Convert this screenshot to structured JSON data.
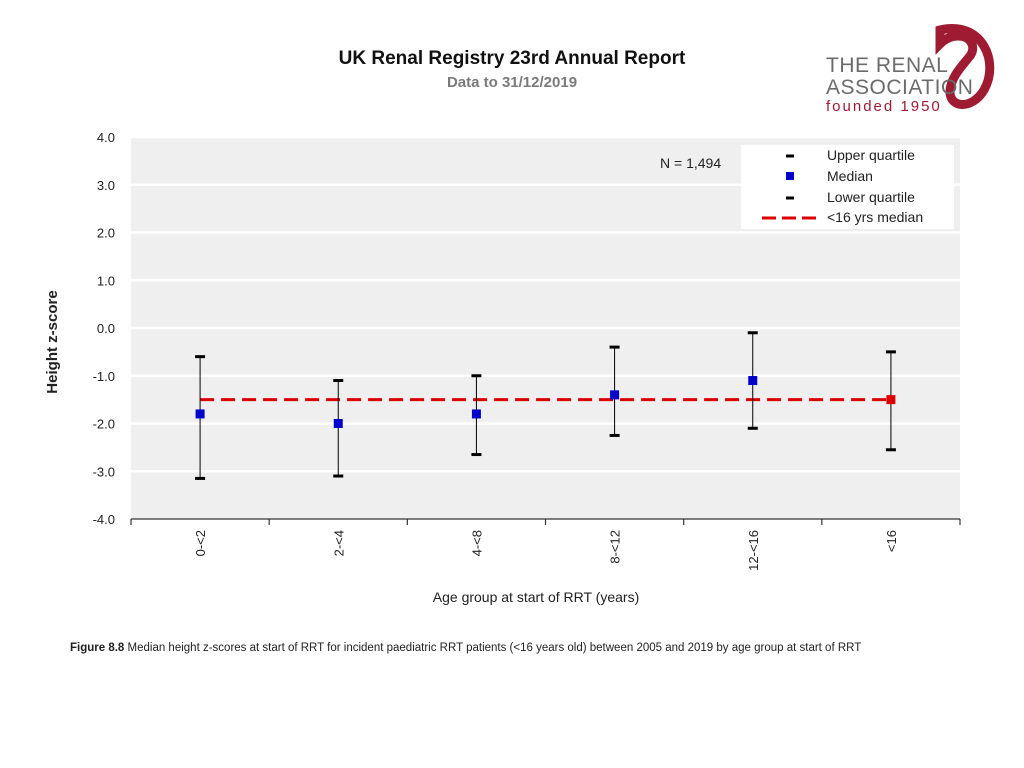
{
  "header": {
    "title": "UK Renal Registry 23rd Annual Report",
    "subtitle": "Data to 31/12/2019"
  },
  "logo": {
    "line1": "THE RENAL",
    "line2": "ASSOCIATION",
    "line3": "founded 1950",
    "accent_color": "#9e1b32"
  },
  "chart_data": {
    "type": "scatter",
    "ylabel": "Height z-score",
    "xlabel": "Age group at start of RRT (years)",
    "ylim": [
      -4.0,
      4.0
    ],
    "y_ticks": [
      "4.0",
      "3.0",
      "2.0",
      "1.0",
      "0.0",
      "-1.0",
      "-2.0",
      "-3.0",
      "-4.0"
    ],
    "y_tick_values": [
      4,
      3,
      2,
      1,
      0,
      -1,
      -2,
      -3,
      -4
    ],
    "categories": [
      "0-<2",
      "2-<4",
      "4-<8",
      "8-<12",
      "12-<16",
      "<16"
    ],
    "median": [
      -1.8,
      -2.0,
      -1.8,
      -1.4,
      -1.1,
      -1.5
    ],
    "upper_quartile": [
      -0.6,
      -1.1,
      -1.0,
      -0.4,
      -0.1,
      -0.5
    ],
    "lower_quartile": [
      -3.15,
      -3.1,
      -2.65,
      -2.25,
      -2.1,
      -2.55
    ],
    "overall_median": -1.5,
    "annotation": "N = 1,494",
    "legend": {
      "position": "top-right",
      "items": [
        "Upper quartile",
        "Median",
        "Lower quartile",
        "<16 yrs median"
      ]
    },
    "grid": true,
    "colors": {
      "plot_bg": "#efefef",
      "grid": "#ffffff",
      "median": "#0000cc",
      "overall_median_point": "#dd0000",
      "reference_line": "#dd0000",
      "whisker": "#000000"
    }
  },
  "caption": {
    "label": "Figure 8.8",
    "text": " Median height z-scores at start of RRT for incident paediatric RRT patients (<16 years old) between 2005 and  2019 by age group at start of RRT"
  }
}
